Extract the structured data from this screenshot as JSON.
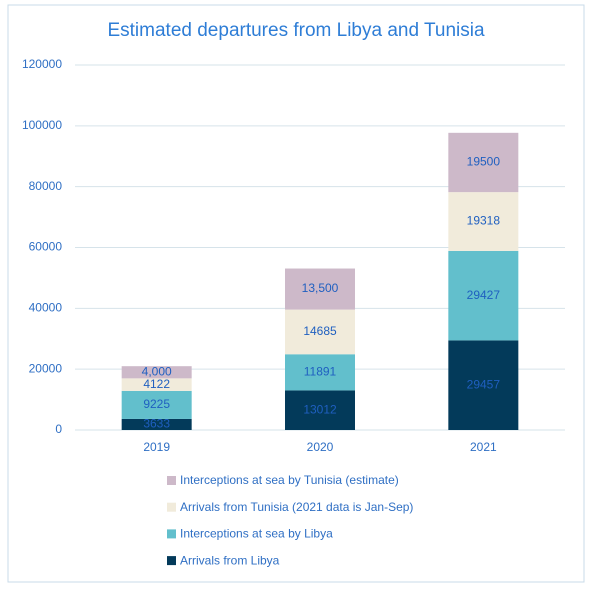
{
  "chart_data": {
    "type": "stacked-bar",
    "title": "Estimated departures from Libya and Tunisia",
    "categories": [
      "2019",
      "2020",
      "2021"
    ],
    "series": [
      {
        "name": "Arrivals from Libya",
        "color": "#033a5a",
        "values": [
          3633,
          13012,
          29457
        ]
      },
      {
        "name": "Interceptions at sea by Libya",
        "color": "#62bfcc",
        "values": [
          9225,
          11891,
          29427
        ]
      },
      {
        "name": "Arrivals from Tunisia (2021 data is Jan-Sep)",
        "color": "#f1ebdb",
        "values": [
          4122,
          14685,
          19318
        ]
      },
      {
        "name": "Interceptions at sea by Tunisia (estimate)",
        "color": "#cdb9c9",
        "values": [
          4000,
          13500,
          19500
        ],
        "value_labels": [
          "4,000",
          "13,500",
          "19500"
        ]
      }
    ],
    "ylim": [
      0,
      120000
    ],
    "yticks": [
      0,
      20000,
      40000,
      60000,
      80000,
      100000,
      120000
    ],
    "grid": true
  }
}
